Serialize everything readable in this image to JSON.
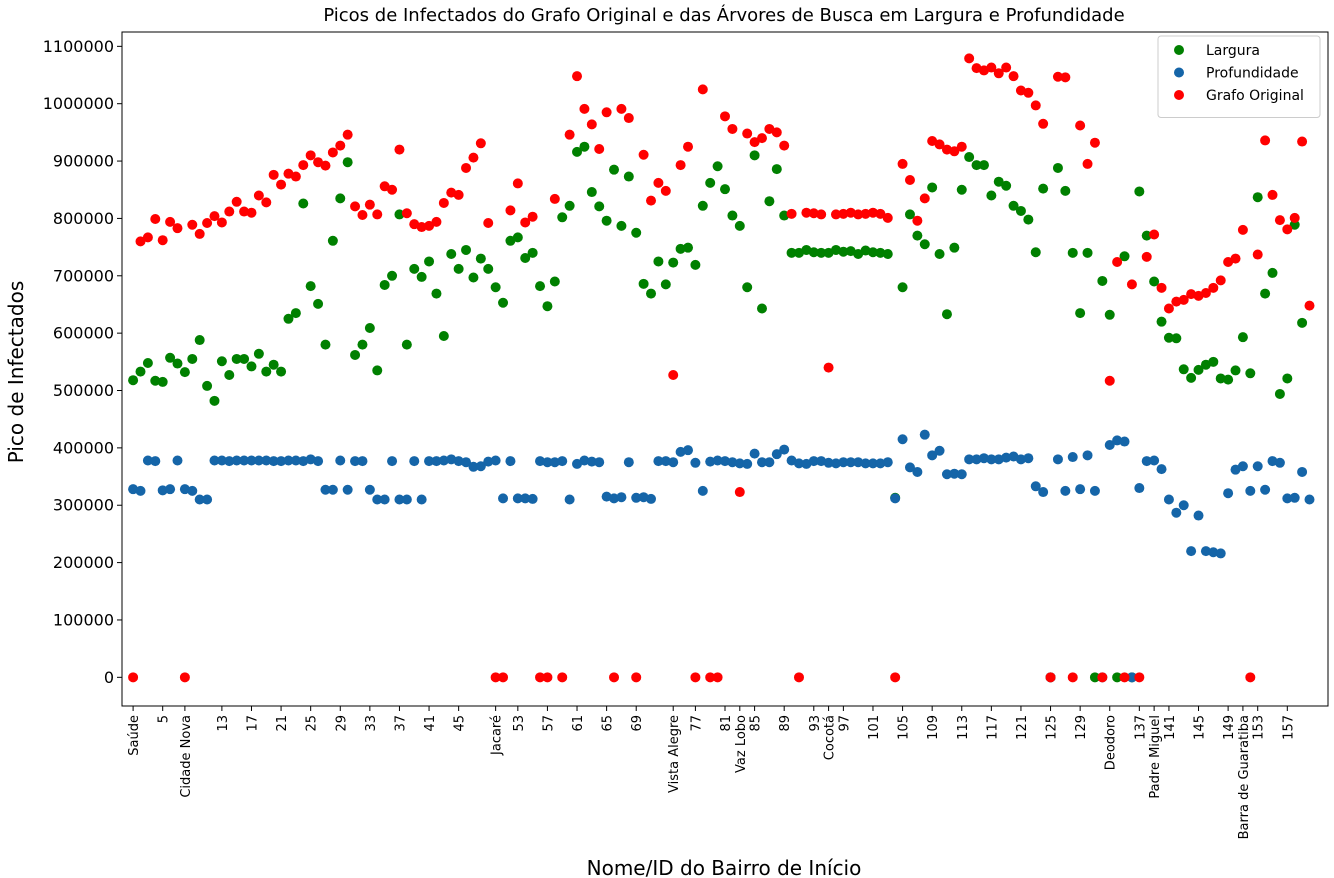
{
  "chart_data": {
    "type": "scatter",
    "title": "Picos de Infectados do Grafo Original e das Árvores de Busca em Largura e Profundidade",
    "xlabel": "Nome/ID do Bairro de Início",
    "ylabel": "Pico de Infectados",
    "ylim": [
      -50000,
      1125000
    ],
    "xlim": [
      -1.5,
      161.5
    ],
    "yticks": [
      0,
      100000,
      200000,
      300000,
      400000,
      500000,
      600000,
      700000,
      800000,
      900000,
      1000000,
      1100000
    ],
    "xticks": [
      {
        "pos": 0,
        "label": "Saúde"
      },
      {
        "pos": 4,
        "label": "5"
      },
      {
        "pos": 7,
        "label": "Cidade Nova"
      },
      {
        "pos": 12,
        "label": "13"
      },
      {
        "pos": 16,
        "label": "17"
      },
      {
        "pos": 20,
        "label": "21"
      },
      {
        "pos": 24,
        "label": "25"
      },
      {
        "pos": 28,
        "label": "29"
      },
      {
        "pos": 32,
        "label": "33"
      },
      {
        "pos": 36,
        "label": "37"
      },
      {
        "pos": 40,
        "label": "41"
      },
      {
        "pos": 44,
        "label": "45"
      },
      {
        "pos": 49,
        "label": "Jacaré"
      },
      {
        "pos": 52,
        "label": "53"
      },
      {
        "pos": 56,
        "label": "57"
      },
      {
        "pos": 60,
        "label": "61"
      },
      {
        "pos": 64,
        "label": "65"
      },
      {
        "pos": 68,
        "label": "69"
      },
      {
        "pos": 73,
        "label": "Vista Alegre"
      },
      {
        "pos": 76,
        "label": "77"
      },
      {
        "pos": 80,
        "label": "81"
      },
      {
        "pos": 82,
        "label": "Vaz Lobo"
      },
      {
        "pos": 84,
        "label": "85"
      },
      {
        "pos": 88,
        "label": "89"
      },
      {
        "pos": 92,
        "label": "93"
      },
      {
        "pos": 94,
        "label": "Cocotá"
      },
      {
        "pos": 96,
        "label": "97"
      },
      {
        "pos": 100,
        "label": "101"
      },
      {
        "pos": 104,
        "label": "105"
      },
      {
        "pos": 108,
        "label": "109"
      },
      {
        "pos": 112,
        "label": "113"
      },
      {
        "pos": 116,
        "label": "117"
      },
      {
        "pos": 120,
        "label": "121"
      },
      {
        "pos": 124,
        "label": "125"
      },
      {
        "pos": 128,
        "label": "129"
      },
      {
        "pos": 132,
        "label": "Deodoro"
      },
      {
        "pos": 136,
        "label": "137"
      },
      {
        "pos": 138,
        "label": "Padre Miguel"
      },
      {
        "pos": 140,
        "label": "141"
      },
      {
        "pos": 144,
        "label": "145"
      },
      {
        "pos": 148,
        "label": "149"
      },
      {
        "pos": 150,
        "label": "Barra de Guaratiba"
      },
      {
        "pos": 152,
        "label": "153"
      },
      {
        "pos": 156,
        "label": "157"
      }
    ],
    "legend_position": "top-right",
    "grid": false,
    "series": [
      {
        "name": "Largura",
        "color": "#008000",
        "values": [
          518000,
          533000,
          548000,
          517000,
          515000,
          557000,
          547000,
          532000,
          555000,
          588000,
          508000,
          482000,
          551000,
          527000,
          555000,
          555000,
          542000,
          564000,
          533000,
          545000,
          533000,
          625000,
          635000,
          826000,
          682000,
          651000,
          580000,
          761000,
          835000,
          898000,
          562000,
          580000,
          609000,
          535000,
          684000,
          700000,
          807000,
          580000,
          712000,
          698000,
          725000,
          669000,
          595000,
          738000,
          712000,
          745000,
          697000,
          730000,
          712000,
          680000,
          653000,
          761000,
          767000,
          731000,
          740000,
          682000,
          647000,
          690000,
          802000,
          822000,
          916000,
          925000,
          846000,
          821000,
          796000,
          885000,
          787000,
          873000,
          775000,
          686000,
          669000,
          725000,
          685000,
          723000,
          747000,
          749000,
          719000,
          822000,
          862000,
          891000,
          851000,
          805000,
          787000,
          680000,
          910000,
          643000,
          830000,
          886000,
          805000,
          740000,
          740000,
          745000,
          741000,
          740000,
          740000,
          745000,
          742000,
          743000,
          738000,
          744000,
          741000,
          740000,
          738000,
          313000,
          680000,
          807000,
          770000,
          755000,
          854000,
          738000,
          633000,
          749000,
          850000,
          907000,
          893000,
          893000,
          840000,
          864000,
          857000,
          822000,
          813000,
          798000,
          741000,
          852000,
          0,
          888000,
          848000,
          740000,
          635000,
          740000,
          0,
          691000,
          632000,
          0,
          734000,
          0,
          847000,
          770000,
          690000,
          620000,
          592000,
          591000,
          537000,
          522000,
          536000,
          545000,
          550000,
          521000,
          519000,
          535000,
          593000,
          530000,
          837000,
          669000,
          705000,
          494000,
          521000,
          789000,
          618000
        ]
      },
      {
        "name": "Profundidade",
        "color": "#1565a8",
        "values": [
          328000,
          325000,
          378000,
          377000,
          326000,
          328000,
          378000,
          328000,
          325000,
          310000,
          310000,
          378000,
          378000,
          377000,
          378000,
          378000,
          378000,
          378000,
          378000,
          377000,
          377000,
          378000,
          378000,
          377000,
          380000,
          377000,
          327000,
          327000,
          378000,
          327000,
          377000,
          377000,
          327000,
          310000,
          310000,
          377000,
          310000,
          310000,
          377000,
          310000,
          377000,
          377000,
          378000,
          380000,
          377000,
          375000,
          367000,
          368000,
          376000,
          378000,
          312000,
          377000,
          312000,
          312000,
          311000,
          377000,
          375000,
          375000,
          377000,
          310000,
          372000,
          378000,
          376000,
          375000,
          315000,
          312000,
          314000,
          375000,
          313000,
          314000,
          311000,
          377000,
          377000,
          375000,
          393000,
          396000,
          374000,
          325000,
          376000,
          378000,
          377000,
          375000,
          373000,
          372000,
          390000,
          375000,
          375000,
          389000,
          397000,
          378000,
          373000,
          372000,
          377000,
          377000,
          374000,
          373000,
          375000,
          375000,
          375000,
          373000,
          373000,
          373000,
          375000,
          312000,
          415000,
          366000,
          358000,
          423000,
          387000,
          395000,
          354000,
          355000,
          354000,
          380000,
          380000,
          382000,
          380000,
          380000,
          383000,
          385000,
          380000,
          382000,
          333000,
          323000,
          0,
          380000,
          325000,
          384000,
          328000,
          387000,
          325000,
          0,
          405000,
          413000,
          411000,
          0,
          330000,
          377000,
          378000,
          363000,
          310000,
          287000,
          300000,
          220000,
          282000,
          220000,
          218000,
          216000,
          321000,
          362000,
          368000,
          325000,
          368000,
          327000,
          377000,
          374000,
          312000,
          313000,
          358000,
          310000
        ]
      },
      {
        "name": "Grafo Original",
        "color": "#ff0000",
        "values": [
          0,
          760000,
          767000,
          799000,
          762000,
          794000,
          783000,
          0,
          789000,
          773000,
          792000,
          804000,
          793000,
          812000,
          829000,
          812000,
          810000,
          840000,
          828000,
          876000,
          859000,
          878000,
          873000,
          893000,
          910000,
          898000,
          892000,
          915000,
          927000,
          946000,
          821000,
          806000,
          824000,
          807000,
          856000,
          850000,
          920000,
          809000,
          790000,
          785000,
          787000,
          794000,
          827000,
          845000,
          841000,
          888000,
          906000,
          931000,
          792000,
          0,
          0,
          814000,
          861000,
          793000,
          803000,
          0,
          0,
          834000,
          0,
          946000,
          1048000,
          991000,
          964000,
          921000,
          985000,
          0,
          991000,
          975000,
          0,
          911000,
          831000,
          862000,
          848000,
          527000,
          893000,
          925000,
          0,
          1025000,
          0,
          0,
          978000,
          956000,
          323000,
          948000,
          933000,
          940000,
          956000,
          950000,
          927000,
          808000,
          0,
          810000,
          809000,
          807000,
          540000,
          807000,
          808000,
          810000,
          807000,
          808000,
          810000,
          808000,
          801000,
          0,
          895000,
          867000,
          796000,
          835000,
          935000,
          929000,
          920000,
          917000,
          925000,
          1079000,
          1062000,
          1058000,
          1063000,
          1053000,
          1063000,
          1048000,
          1023000,
          1019000,
          997000,
          965000,
          0,
          1047000,
          1046000,
          0,
          962000,
          895000,
          932000,
          0,
          517000,
          724000,
          0,
          685000,
          0,
          733000,
          772000,
          679000,
          643000,
          655000,
          658000,
          668000,
          665000,
          670000,
          679000,
          692000,
          724000,
          730000,
          780000,
          0,
          737000,
          936000,
          841000,
          797000,
          781000,
          801000,
          934000,
          648000
        ]
      }
    ]
  }
}
